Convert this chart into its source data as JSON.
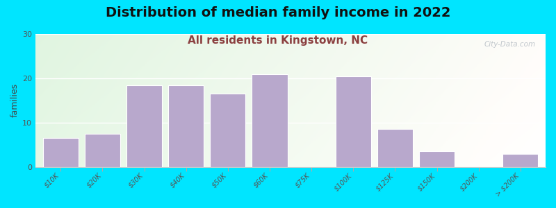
{
  "title": "Distribution of median family income in 2022",
  "subtitle": "All residents in Kingstown, NC",
  "ylabel": "families",
  "categories": [
    "$10K",
    "$20K",
    "$30K",
    "$40K",
    "$50K",
    "$60K",
    "$75K",
    "$100K",
    "$125K",
    "$150K",
    "$200K",
    "> $200K"
  ],
  "bar_values": [
    6.5,
    7.5,
    18.5,
    18.5,
    16.5,
    21,
    0,
    20.5,
    8.5,
    3.5,
    0,
    3
  ],
  "bar_color": "#b8a8cc",
  "bar_edgecolor": "#ffffff",
  "background_outer": "#00e5ff",
  "ylim": [
    0,
    30
  ],
  "yticks": [
    0,
    10,
    20,
    30
  ],
  "title_fontsize": 14,
  "subtitle_fontsize": 11,
  "ylabel_fontsize": 9,
  "watermark": "City-Data.com"
}
